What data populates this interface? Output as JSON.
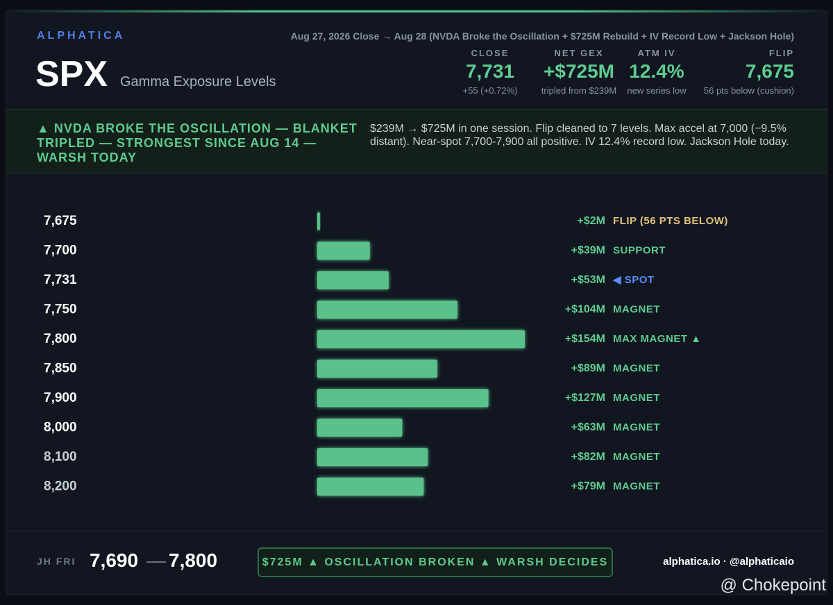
{
  "header": {
    "brand": "ALPHATICA",
    "ticker": "SPX",
    "title": "Gamma Exposure Levels",
    "subtitle": "Aug 27, 2026 Close → Aug 28 (NVDA Broke the Oscillation + $725M Rebuild + IV Record Low + Jackson Hole)"
  },
  "stats": [
    {
      "label": "CLOSE",
      "value": "7,731",
      "note": "+55 (+0.72%)"
    },
    {
      "label": "NET GEX",
      "value": "+$725M",
      "note": "tripled from $239M"
    },
    {
      "label": "ATM IV",
      "value": "12.4%",
      "note": "new series low"
    },
    {
      "label": "FLIP",
      "value": "7,675",
      "note": "56 pts below (cushion)"
    }
  ],
  "banner": {
    "headline": "▲ NVDA BROKE THE OSCILLATION — BLANKET TRIPLED — STRONGEST SINCE AUG 14 — WARSH TODAY",
    "text": "$239M → $725M in one session. Flip cleaned to 7 levels. Max accel at 7,000 (−9.5% distant). Near-spot 7,700-7,900 all positive. IV 12.4% record low. Jackson Hole today."
  },
  "chart_data": {
    "type": "bar",
    "orientation": "horizontal",
    "color": "#5ecb90",
    "categories": [
      "7,675",
      "7,700",
      "7,731",
      "7,750",
      "7,800",
      "7,850",
      "7,900",
      "8,000",
      "8,100",
      "8,200"
    ],
    "values": [
      2,
      39,
      53,
      104,
      154,
      89,
      127,
      63,
      82,
      79
    ],
    "value_labels": [
      "+$2M",
      "+$39M",
      "+$53M",
      "+$104M",
      "+$154M",
      "+$89M",
      "+$127M",
      "+$63M",
      "+$82M",
      "+$79M"
    ],
    "notes": [
      "FLIP (56 PTS BELOW)",
      "SUPPORT",
      "◀ SPOT",
      "MAGNET",
      "MAX MAGNET ▲",
      "MAGNET",
      "MAGNET",
      "MAGNET",
      "MAGNET",
      "MAGNET"
    ],
    "note_colors": [
      "#e3c27a",
      "#5ecb90",
      "#5b8cff",
      "#5ecb90",
      "#5ecb90",
      "#5ecb90",
      "#5ecb90",
      "#5ecb90",
      "#5ecb90",
      "#5ecb90"
    ],
    "xlim": [
      0,
      154
    ]
  },
  "footer": {
    "label": "JH FRI",
    "range_low": "7,690",
    "range_separator": "—",
    "range_high": "7,800",
    "pill": "$725M ▲ OSCILLATION BROKEN ▲ WARSH DECIDES",
    "credit": "alphatica.io · @alphaticaio"
  },
  "watermark": "@ Chokepoint"
}
